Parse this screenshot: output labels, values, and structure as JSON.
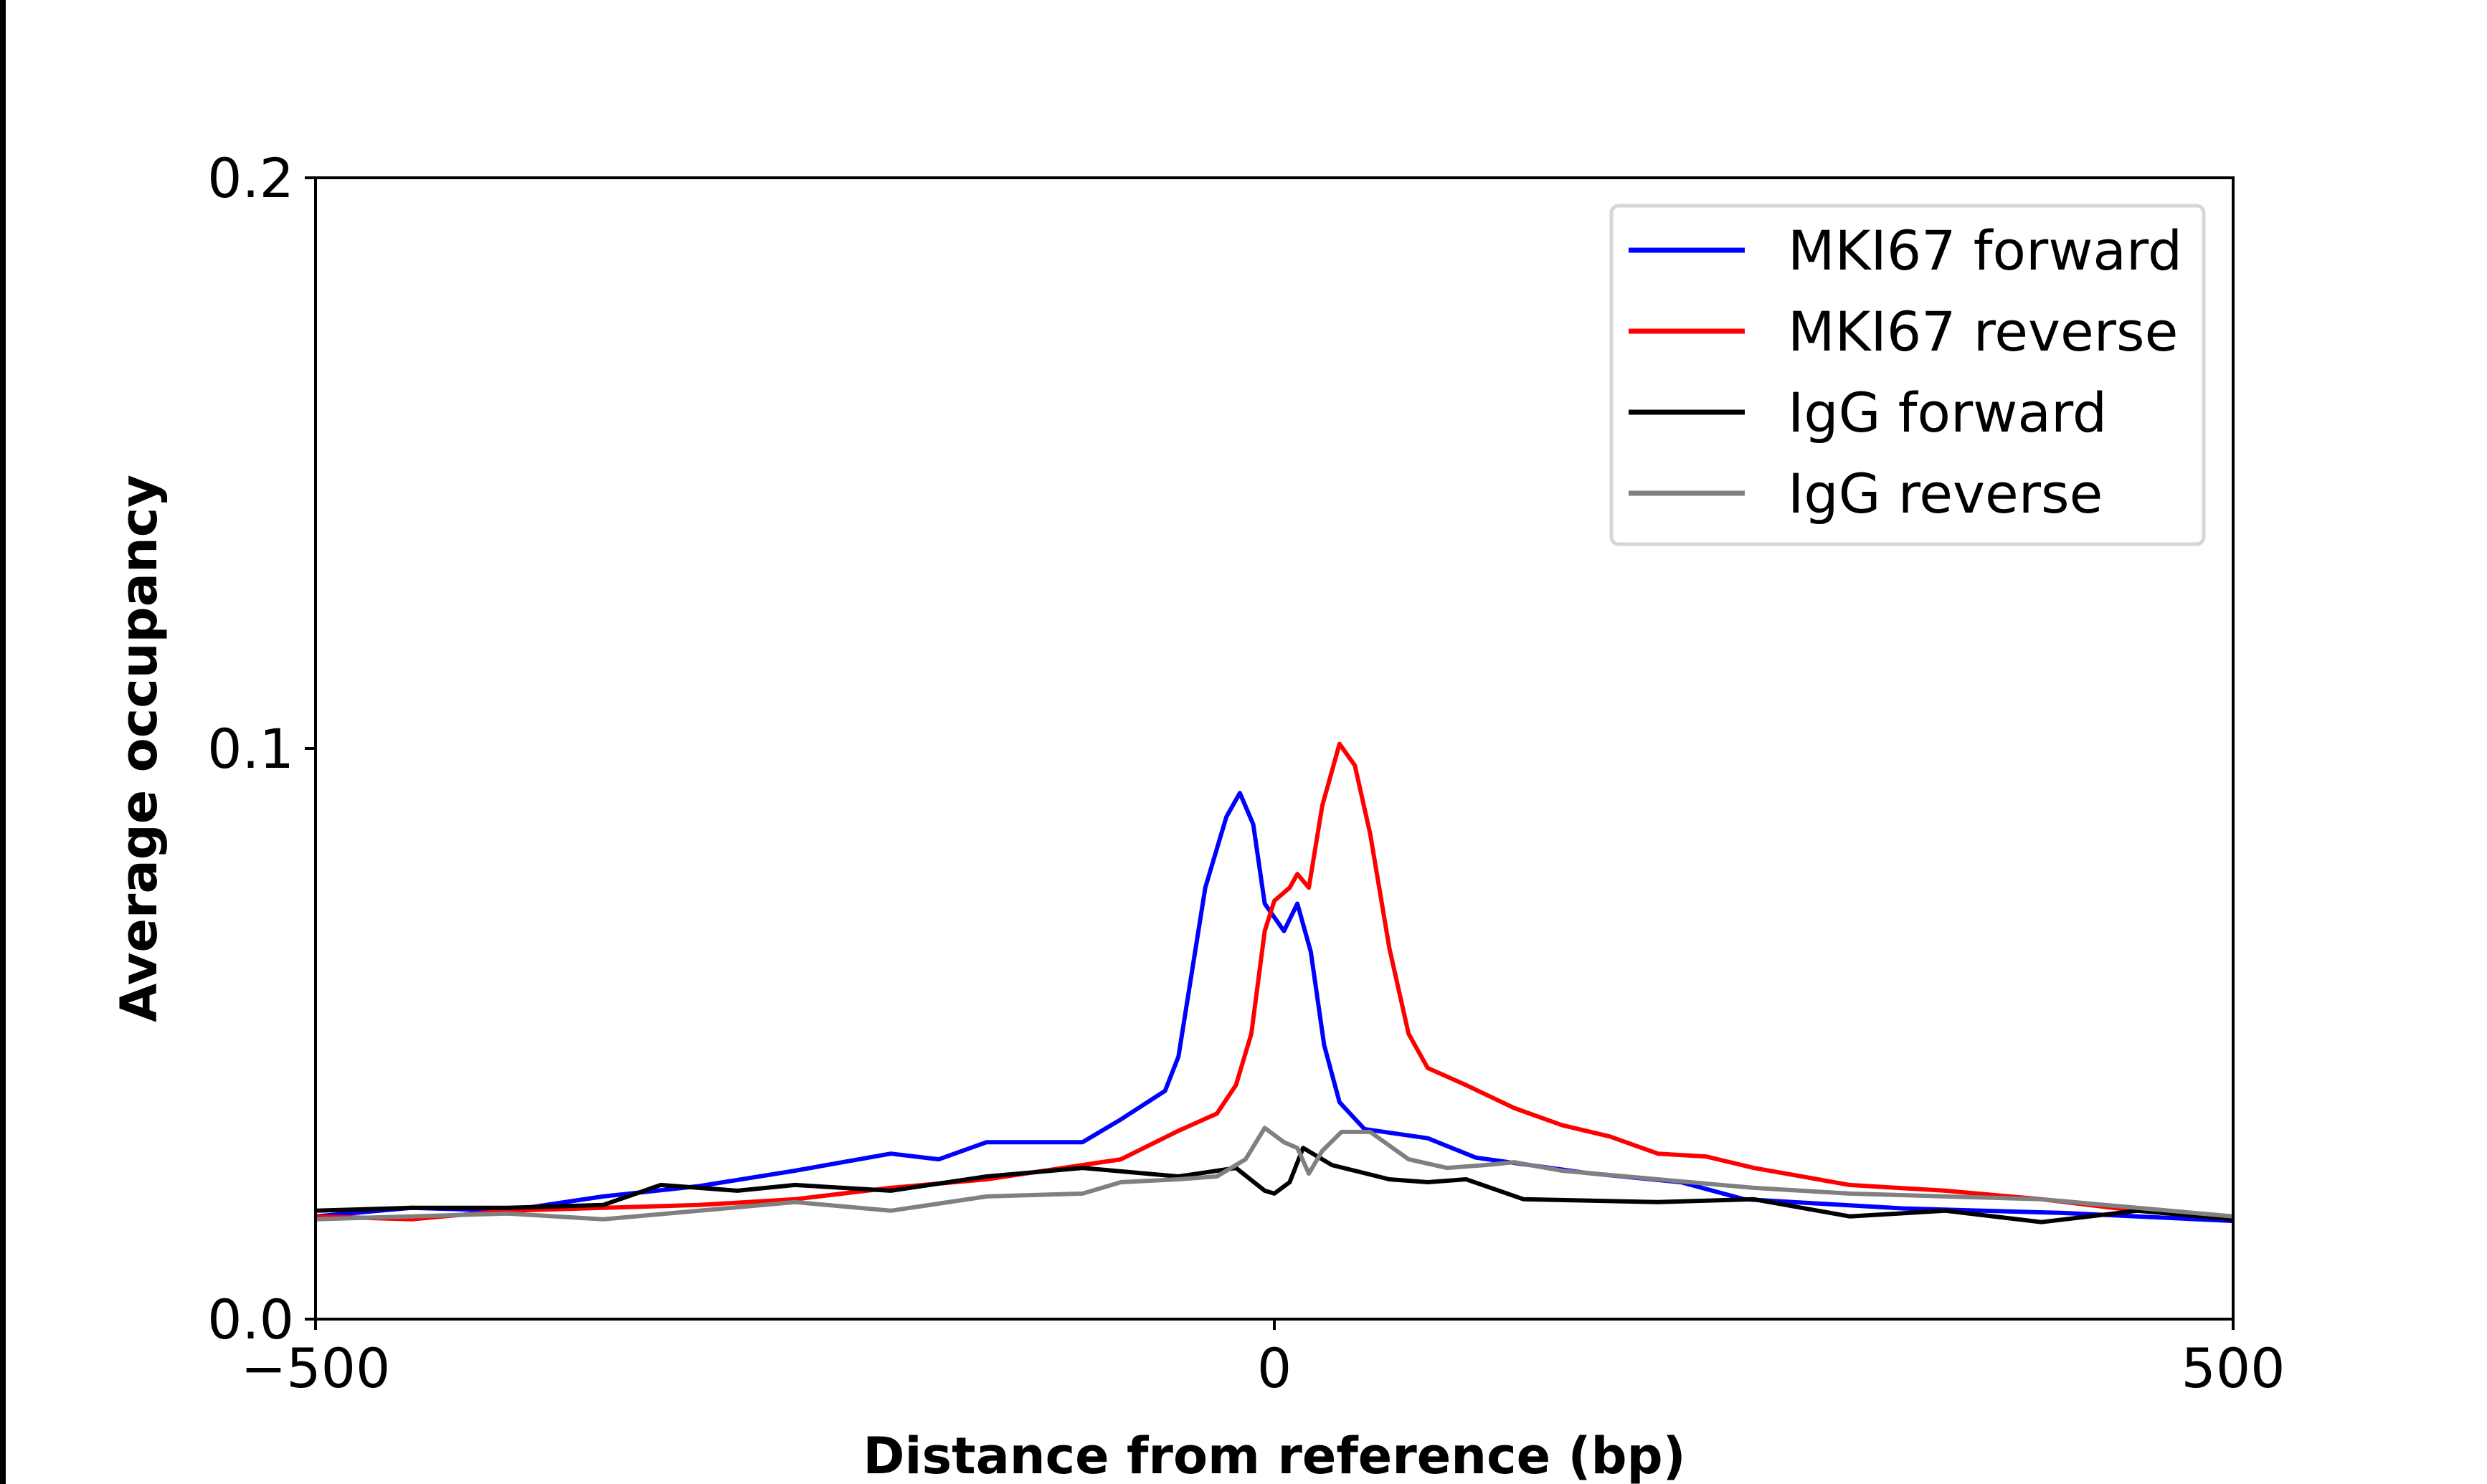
{
  "chart_data": {
    "type": "line",
    "title": "",
    "xlabel": "Distance from reference (bp)",
    "ylabel": "Average occupancy",
    "xlim": [
      -500,
      500
    ],
    "ylim": [
      0.0,
      0.2
    ],
    "xticks": [
      "−500",
      "0",
      "500"
    ],
    "xtick_values": [
      -500,
      0,
      500
    ],
    "yticks": [
      "0.0",
      "0.1",
      "0.2"
    ],
    "ytick_values": [
      0.0,
      0.1,
      0.2
    ],
    "grid": false,
    "legend_position": "top-right",
    "series": [
      {
        "name": "MKI67 forward",
        "color": "#0000ff",
        "x": [
          -500,
          -450,
          -400,
          -350,
          -300,
          -250,
          -200,
          -175,
          -150,
          -100,
          -80,
          -57,
          -50,
          -36,
          -25,
          -18,
          -11,
          -5,
          5,
          12,
          19,
          26,
          34,
          47,
          80,
          105,
          163,
          212,
          245,
          328,
          411,
          500
        ],
        "y": [
          0.018,
          0.0195,
          0.019,
          0.0215,
          0.0233,
          0.026,
          0.029,
          0.028,
          0.031,
          0.031,
          0.035,
          0.04,
          0.046,
          0.0756,
          0.088,
          0.0922,
          0.0867,
          0.0728,
          0.068,
          0.0728,
          0.0644,
          0.048,
          0.038,
          0.0333,
          0.0317,
          0.0283,
          0.0256,
          0.024,
          0.021,
          0.0194,
          0.0186,
          0.0172
        ]
      },
      {
        "name": "MKI67 reverse",
        "color": "#ff0000",
        "x": [
          -500,
          -450,
          -400,
          -350,
          -300,
          -250,
          -200,
          -150,
          -100,
          -80,
          -50,
          -30,
          -20,
          -12,
          -5,
          0,
          8,
          12,
          18,
          25,
          34,
          42,
          50,
          60,
          70,
          80,
          100,
          125,
          150,
          175,
          200,
          225,
          250,
          300,
          350,
          400,
          450,
          500
        ],
        "y": [
          0.018,
          0.0175,
          0.019,
          0.0195,
          0.02,
          0.021,
          0.023,
          0.0245,
          0.027,
          0.028,
          0.033,
          0.036,
          0.041,
          0.05,
          0.068,
          0.0733,
          0.0756,
          0.078,
          0.0756,
          0.09,
          0.1008,
          0.097,
          0.085,
          0.065,
          0.05,
          0.044,
          0.041,
          0.037,
          0.034,
          0.032,
          0.029,
          0.0285,
          0.0265,
          0.0235,
          0.0225,
          0.021,
          0.019,
          0.018
        ]
      },
      {
        "name": "IgG forward",
        "color": "#000000",
        "x": [
          -500,
          -450,
          -400,
          -350,
          -320,
          -280,
          -250,
          -200,
          -150,
          -100,
          -50,
          -20,
          -5,
          0,
          8,
          15,
          30,
          60,
          80,
          100,
          130,
          200,
          250,
          300,
          350,
          400,
          450,
          500
        ],
        "y": [
          0.019,
          0.0195,
          0.0195,
          0.02,
          0.0235,
          0.0225,
          0.0235,
          0.0225,
          0.025,
          0.0265,
          0.025,
          0.0265,
          0.0225,
          0.022,
          0.024,
          0.03,
          0.027,
          0.0245,
          0.024,
          0.0245,
          0.021,
          0.0205,
          0.021,
          0.018,
          0.019,
          0.017,
          0.019,
          0.0175
        ]
      },
      {
        "name": "IgG reverse",
        "color": "#808080",
        "x": [
          -500,
          -400,
          -350,
          -300,
          -250,
          -200,
          -150,
          -100,
          -80,
          -50,
          -30,
          -15,
          -5,
          5,
          12,
          18,
          25,
          35,
          50,
          70,
          90,
          110,
          125,
          150,
          200,
          250,
          300,
          350,
          400,
          450,
          500
        ],
        "y": [
          0.0175,
          0.0185,
          0.0175,
          0.019,
          0.0205,
          0.019,
          0.0215,
          0.022,
          0.024,
          0.0245,
          0.025,
          0.028,
          0.0335,
          0.031,
          0.03,
          0.0255,
          0.0295,
          0.0328,
          0.0328,
          0.028,
          0.0265,
          0.027,
          0.0275,
          0.026,
          0.0245,
          0.023,
          0.022,
          0.0215,
          0.021,
          0.0195,
          0.018
        ]
      }
    ]
  }
}
